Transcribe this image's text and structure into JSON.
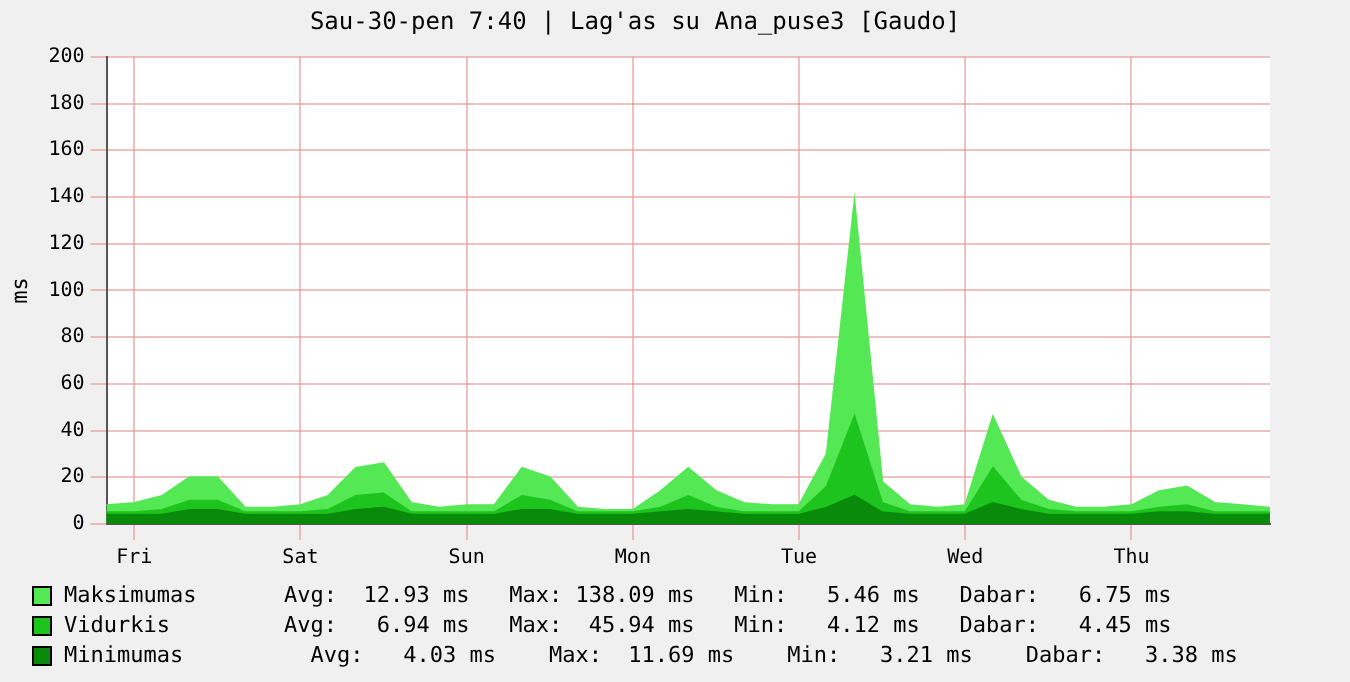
{
  "chart_data": {
    "type": "area",
    "title": "Sau-30-pen 7:40 | Lag'as su Ana_puse3 [Gaudo]",
    "ylabel": "ms",
    "categories": [
      null,
      "Fri",
      null,
      null,
      null,
      null,
      null,
      "Sat",
      null,
      null,
      null,
      null,
      null,
      "Sun",
      null,
      null,
      null,
      null,
      null,
      "Mon",
      null,
      null,
      null,
      null,
      null,
      "Tue",
      null,
      null,
      null,
      null,
      null,
      "Wed",
      null,
      null,
      null,
      null,
      null,
      "Thu",
      null,
      null,
      null,
      null,
      null
    ],
    "series": [
      {
        "name": "Maksimumas",
        "color": "#54e854",
        "values": [
          8,
          9,
          12,
          20,
          20,
          7,
          7,
          8,
          12,
          24,
          26,
          9,
          7,
          8,
          8,
          24,
          20,
          7,
          6,
          6,
          14,
          24,
          14,
          9,
          8,
          8,
          30,
          138,
          18,
          8,
          7,
          8,
          46,
          20,
          10,
          7,
          7,
          8,
          14,
          16,
          9,
          8,
          7
        ]
      },
      {
        "name": "Vidurkis",
        "color": "#1ec41e",
        "values": [
          5,
          5,
          6,
          10,
          10,
          5,
          5,
          5,
          6,
          12,
          13,
          5,
          5,
          5,
          5,
          12,
          10,
          5,
          5,
          5,
          7,
          12,
          7,
          5,
          5,
          5,
          16,
          46,
          9,
          5,
          5,
          5,
          24,
          10,
          6,
          5,
          5,
          5,
          7,
          8,
          5,
          5,
          5
        ]
      },
      {
        "name": "Minimumas",
        "color": "#0a8a0a",
        "values": [
          4,
          4,
          4,
          6,
          6,
          4,
          4,
          4,
          4,
          6,
          7,
          4,
          4,
          4,
          4,
          6,
          6,
          4,
          4,
          4,
          5,
          6,
          5,
          4,
          4,
          4,
          7,
          12,
          5,
          4,
          4,
          4,
          9,
          6,
          4,
          4,
          4,
          4,
          5,
          5,
          4,
          4,
          4
        ]
      }
    ],
    "ylim": [
      0,
      200
    ],
    "yticks": [
      0,
      20,
      40,
      60,
      80,
      100,
      120,
      140,
      160,
      180,
      200
    ],
    "grid": true,
    "legend": "bottom",
    "annotations": [
      "Avg:  12.93 ms   Max: 138.09 ms   Min:   5.46 ms   Dabar:   6.75 ms",
      "Avg:   6.94 ms   Max:  45.94 ms   Min:   4.12 ms   Dabar:   4.45 ms",
      "  Avg:   4.03 ms    Max:  11.69 ms    Min:   3.21 ms    Dabar:   3.38 ms"
    ]
  }
}
